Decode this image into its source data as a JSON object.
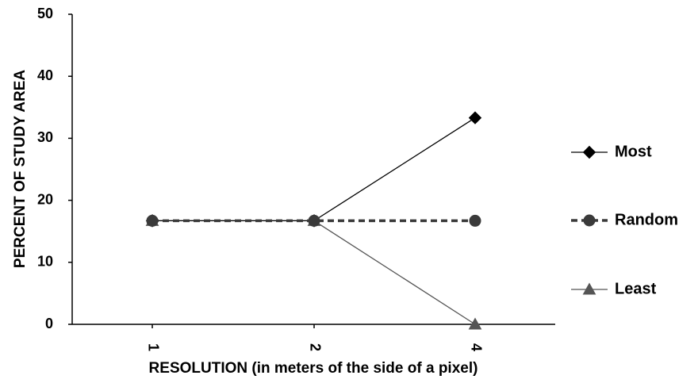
{
  "chart_data": {
    "type": "line",
    "title": "",
    "xlabel": "RESOLUTION (in meters of the side of a pixel)",
    "ylabel": "PERCENT OF STUDY AREA",
    "categories": [
      "1",
      "2",
      "4"
    ],
    "ylim": [
      0,
      50
    ],
    "yticks": [
      "0",
      "10",
      "20",
      "30",
      "40",
      "50"
    ],
    "grid": false,
    "legend_position": "right",
    "series": [
      {
        "name": "Most",
        "values": [
          16.7,
          16.7,
          33.3
        ],
        "marker": "diamond",
        "line": "solid",
        "color": "#000000"
      },
      {
        "name": "Random",
        "values": [
          16.7,
          16.7,
          16.7
        ],
        "marker": "circle",
        "line": "dashed",
        "color": "#3a3a3a"
      },
      {
        "name": "Least",
        "values": [
          16.7,
          16.7,
          0
        ],
        "marker": "triangle",
        "line": "solid",
        "color": "#555555"
      }
    ]
  }
}
